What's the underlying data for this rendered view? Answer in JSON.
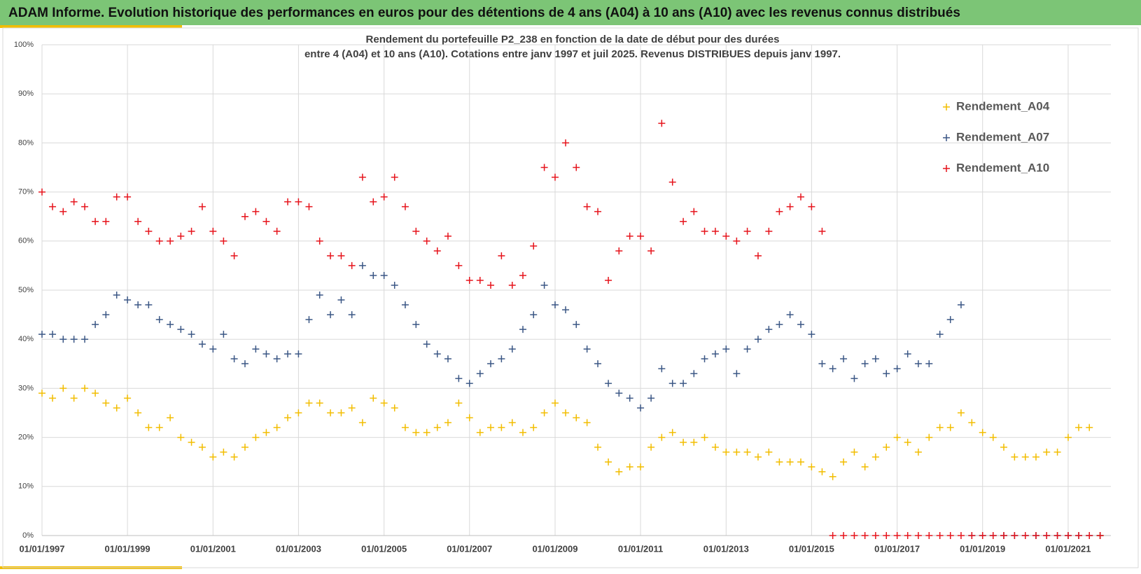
{
  "banner": {
    "title": "ADAM Informe. Evolution historique des performances en euros pour des détentions de 4 ans (A04) à 10 ans (A10) avec les revenus connus distribués"
  },
  "chart_data": {
    "type": "scatter",
    "title": "Rendement du portefeuille P2_238 en fonction de la date de début pour des durées",
    "subtitle": "entre 4 (A04) et 10 ans (A10). Cotations  entre janv 1997 et juil 2025. Revenus DISTRIBUES depuis janv 1997.",
    "legend": "right",
    "grid": true,
    "xlim": [
      "1997-01-01",
      "2022-01-01"
    ],
    "xticks": [
      {
        "value": "1997-01-01",
        "label": "01/01/1997"
      },
      {
        "value": "1999-01-01",
        "label": "01/01/1999"
      },
      {
        "value": "2001-01-01",
        "label": "01/01/2001"
      },
      {
        "value": "2003-01-01",
        "label": "01/01/2003"
      },
      {
        "value": "2005-01-01",
        "label": "01/01/2005"
      },
      {
        "value": "2007-01-01",
        "label": "01/01/2007"
      },
      {
        "value": "2009-01-01",
        "label": "01/01/2009"
      },
      {
        "value": "2011-01-01",
        "label": "01/01/2011"
      },
      {
        "value": "2013-01-01",
        "label": "01/01/2013"
      },
      {
        "value": "2015-01-01",
        "label": "01/01/2015"
      },
      {
        "value": "2017-01-01",
        "label": "01/01/2017"
      },
      {
        "value": "2019-01-01",
        "label": "01/01/2019"
      },
      {
        "value": "2021-01-01",
        "label": "01/01/2021"
      }
    ],
    "ylim": [
      0,
      100
    ],
    "yticks": [
      {
        "value": 0,
        "label": "0%"
      },
      {
        "value": 10,
        "label": "10%"
      },
      {
        "value": 20,
        "label": "20%"
      },
      {
        "value": 30,
        "label": "30%"
      },
      {
        "value": 40,
        "label": "40%"
      },
      {
        "value": 50,
        "label": "50%"
      },
      {
        "value": 60,
        "label": "60%"
      },
      {
        "value": 70,
        "label": "70%"
      },
      {
        "value": 80,
        "label": "80%"
      },
      {
        "value": 90,
        "label": "90%"
      },
      {
        "value": 100,
        "label": "100%"
      }
    ],
    "x": [
      "1997-01-01",
      "1997-04-01",
      "1997-07-01",
      "1997-10-01",
      "1998-01-01",
      "1998-04-01",
      "1998-07-01",
      "1998-10-01",
      "1999-01-01",
      "1999-04-01",
      "1999-07-01",
      "1999-10-01",
      "2000-01-01",
      "2000-04-01",
      "2000-07-01",
      "2000-10-01",
      "2001-01-01",
      "2001-04-01",
      "2001-07-01",
      "2001-10-01",
      "2002-01-01",
      "2002-04-01",
      "2002-07-01",
      "2002-10-01",
      "2003-01-01",
      "2003-04-01",
      "2003-07-01",
      "2003-10-01",
      "2004-01-01",
      "2004-04-01",
      "2004-07-01",
      "2004-10-01",
      "2005-01-01",
      "2005-04-01",
      "2005-07-01",
      "2005-10-01",
      "2006-01-01",
      "2006-04-01",
      "2006-07-01",
      "2006-10-01",
      "2007-01-01",
      "2007-04-01",
      "2007-07-01",
      "2007-10-01",
      "2008-01-01",
      "2008-04-01",
      "2008-07-01",
      "2008-10-01",
      "2009-01-01",
      "2009-04-01",
      "2009-07-01",
      "2009-10-01",
      "2010-01-01",
      "2010-04-01",
      "2010-07-01",
      "2010-10-01",
      "2011-01-01",
      "2011-04-01",
      "2011-07-01",
      "2011-10-01",
      "2012-01-01",
      "2012-04-01",
      "2012-07-01",
      "2012-10-01",
      "2013-01-01",
      "2013-04-01",
      "2013-07-01",
      "2013-10-01",
      "2014-01-01",
      "2014-04-01",
      "2014-07-01",
      "2014-10-01",
      "2015-01-01",
      "2015-04-01",
      "2015-07-01",
      "2015-10-01",
      "2016-01-01",
      "2016-04-01",
      "2016-07-01",
      "2016-10-01",
      "2017-01-01",
      "2017-04-01",
      "2017-07-01",
      "2017-10-01",
      "2018-01-01",
      "2018-04-01",
      "2018-07-01",
      "2018-10-01",
      "2019-01-01",
      "2019-04-01",
      "2019-07-01",
      "2019-10-01",
      "2020-01-01",
      "2020-04-01",
      "2020-07-01",
      "2020-10-01",
      "2021-01-01",
      "2021-04-01",
      "2021-07-01",
      "2021-10-01"
    ],
    "series": [
      {
        "name": "Rendement_A04",
        "color": "#f2bd00",
        "values": [
          29,
          28,
          30,
          28,
          30,
          29,
          27,
          26,
          28,
          25,
          22,
          22,
          24,
          20,
          19,
          18,
          16,
          17,
          16,
          18,
          20,
          21,
          22,
          24,
          25,
          27,
          27,
          25,
          25,
          26,
          23,
          28,
          27,
          26,
          22,
          21,
          21,
          22,
          23,
          27,
          24,
          21,
          22,
          22,
          23,
          21,
          22,
          25,
          27,
          25,
          24,
          23,
          18,
          15,
          13,
          14,
          14,
          18,
          20,
          21,
          19,
          19,
          20,
          18,
          17,
          17,
          17,
          16,
          17,
          15,
          15,
          15,
          14,
          13,
          12,
          15,
          17,
          14,
          16,
          18,
          20,
          19,
          17,
          20,
          22,
          22,
          25,
          23,
          21,
          20,
          18,
          16,
          16,
          16,
          17,
          17,
          20,
          22,
          22,
          0
        ]
      },
      {
        "name": "Rendement_A07",
        "color": "#3b5785",
        "values": [
          41,
          41,
          40,
          40,
          40,
          43,
          45,
          49,
          48,
          47,
          47,
          44,
          43,
          42,
          41,
          39,
          38,
          41,
          36,
          35,
          38,
          37,
          36,
          37,
          37,
          44,
          49,
          45,
          48,
          45,
          55,
          53,
          53,
          51,
          47,
          43,
          39,
          37,
          36,
          32,
          31,
          33,
          35,
          36,
          38,
          42,
          45,
          51,
          47,
          46,
          43,
          38,
          35,
          31,
          29,
          28,
          26,
          28,
          34,
          31,
          31,
          33,
          36,
          37,
          38,
          33,
          38,
          40,
          42,
          43,
          45,
          43,
          41,
          35,
          34,
          36,
          32,
          35,
          36,
          33,
          34,
          37,
          35,
          35,
          41,
          44,
          47,
          0,
          0,
          0,
          0,
          0,
          0,
          0,
          0,
          0,
          0,
          0,
          0,
          0
        ]
      },
      {
        "name": "Rendement_A10",
        "color": "#e6141c",
        "values": [
          70,
          67,
          66,
          68,
          67,
          64,
          64,
          69,
          69,
          64,
          62,
          60,
          60,
          61,
          62,
          67,
          62,
          60,
          57,
          65,
          66,
          64,
          62,
          68,
          68,
          67,
          60,
          57,
          57,
          55,
          73,
          68,
          69,
          73,
          67,
          62,
          60,
          58,
          61,
          55,
          52,
          52,
          51,
          57,
          51,
          53,
          59,
          75,
          73,
          80,
          75,
          67,
          66,
          52,
          58,
          61,
          61,
          58,
          84,
          72,
          64,
          66,
          62,
          62,
          61,
          60,
          62,
          57,
          62,
          66,
          67,
          69,
          67,
          62,
          0,
          0,
          0,
          0,
          0,
          0,
          0,
          0,
          0,
          0,
          0,
          0,
          0,
          0,
          0,
          0,
          0,
          0,
          0,
          0,
          0,
          0,
          0,
          0,
          0,
          0
        ]
      }
    ]
  }
}
